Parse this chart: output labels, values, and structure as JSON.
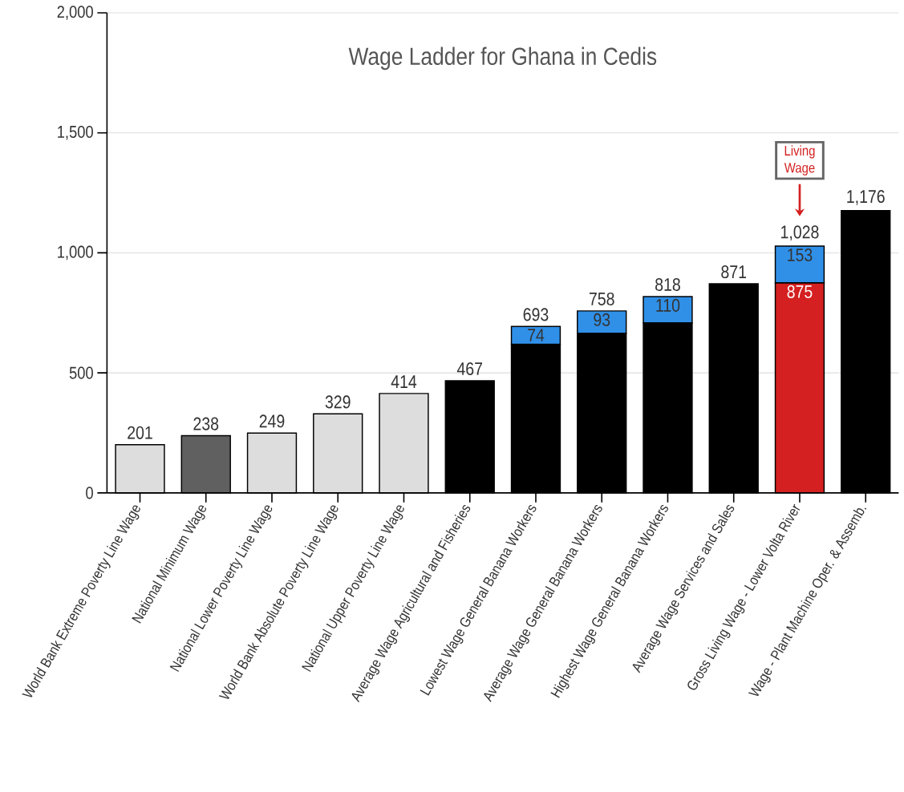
{
  "chart_data": {
    "type": "bar",
    "stacked": true,
    "title": "Wage Ladder for Ghana in Cedis",
    "categories": [
      "World Bank Extreme Poverty Line Wage",
      "National Minimum Wage",
      "National Lower Poverty Line Wage",
      "World Bank Absolute Poverty Line Wage",
      "National Upper Poverty Line Wage",
      "Average Wage Agricultural and Fisheries",
      "Lowest Wage General Banana Workers",
      "Average Wage General Banana Workers",
      "Highest Wage General Banana Workers",
      "Average Wage Services and Sales",
      "Gross Living Wage - Lower Volta River",
      "Wage - Plant Machine Oper. & Assemb."
    ],
    "series": [
      {
        "values": [
          201,
          238,
          249,
          329,
          414,
          467,
          619,
          665,
          708,
          871,
          875,
          1176
        ],
        "colors": [
          "#dddddd",
          "#606060",
          "#dddddd",
          "#dddddd",
          "#dddddd",
          "#000000",
          "#000000",
          "#000000",
          "#000000",
          "#000000",
          "#d42020",
          "#000000"
        ],
        "value_labels": [
          null,
          null,
          null,
          null,
          null,
          null,
          null,
          null,
          null,
          null,
          "875",
          null
        ]
      },
      {
        "color": "#3090e8",
        "values": [
          null,
          null,
          null,
          null,
          null,
          null,
          74,
          93,
          110,
          null,
          153,
          null
        ],
        "value_labels": [
          null,
          null,
          null,
          null,
          null,
          null,
          "74",
          "93",
          "110",
          null,
          "153",
          null
        ]
      }
    ],
    "totals": [
      "201",
      "238",
      "249",
      "329",
      "414",
      "467",
      "693",
      "758",
      "818",
      "871",
      "1,028",
      "1,176"
    ],
    "ylim": [
      0,
      2000
    ],
    "yticks": [
      0,
      {
        "value": 500,
        "label": "500"
      },
      {
        "value": 1000,
        "label": "1,000"
      },
      {
        "value": 1500,
        "label": "1,500"
      },
      {
        "value": 2000,
        "label": "2,000"
      }
    ],
    "grid": "y",
    "annotations": [
      "Living Wage"
    ]
  }
}
